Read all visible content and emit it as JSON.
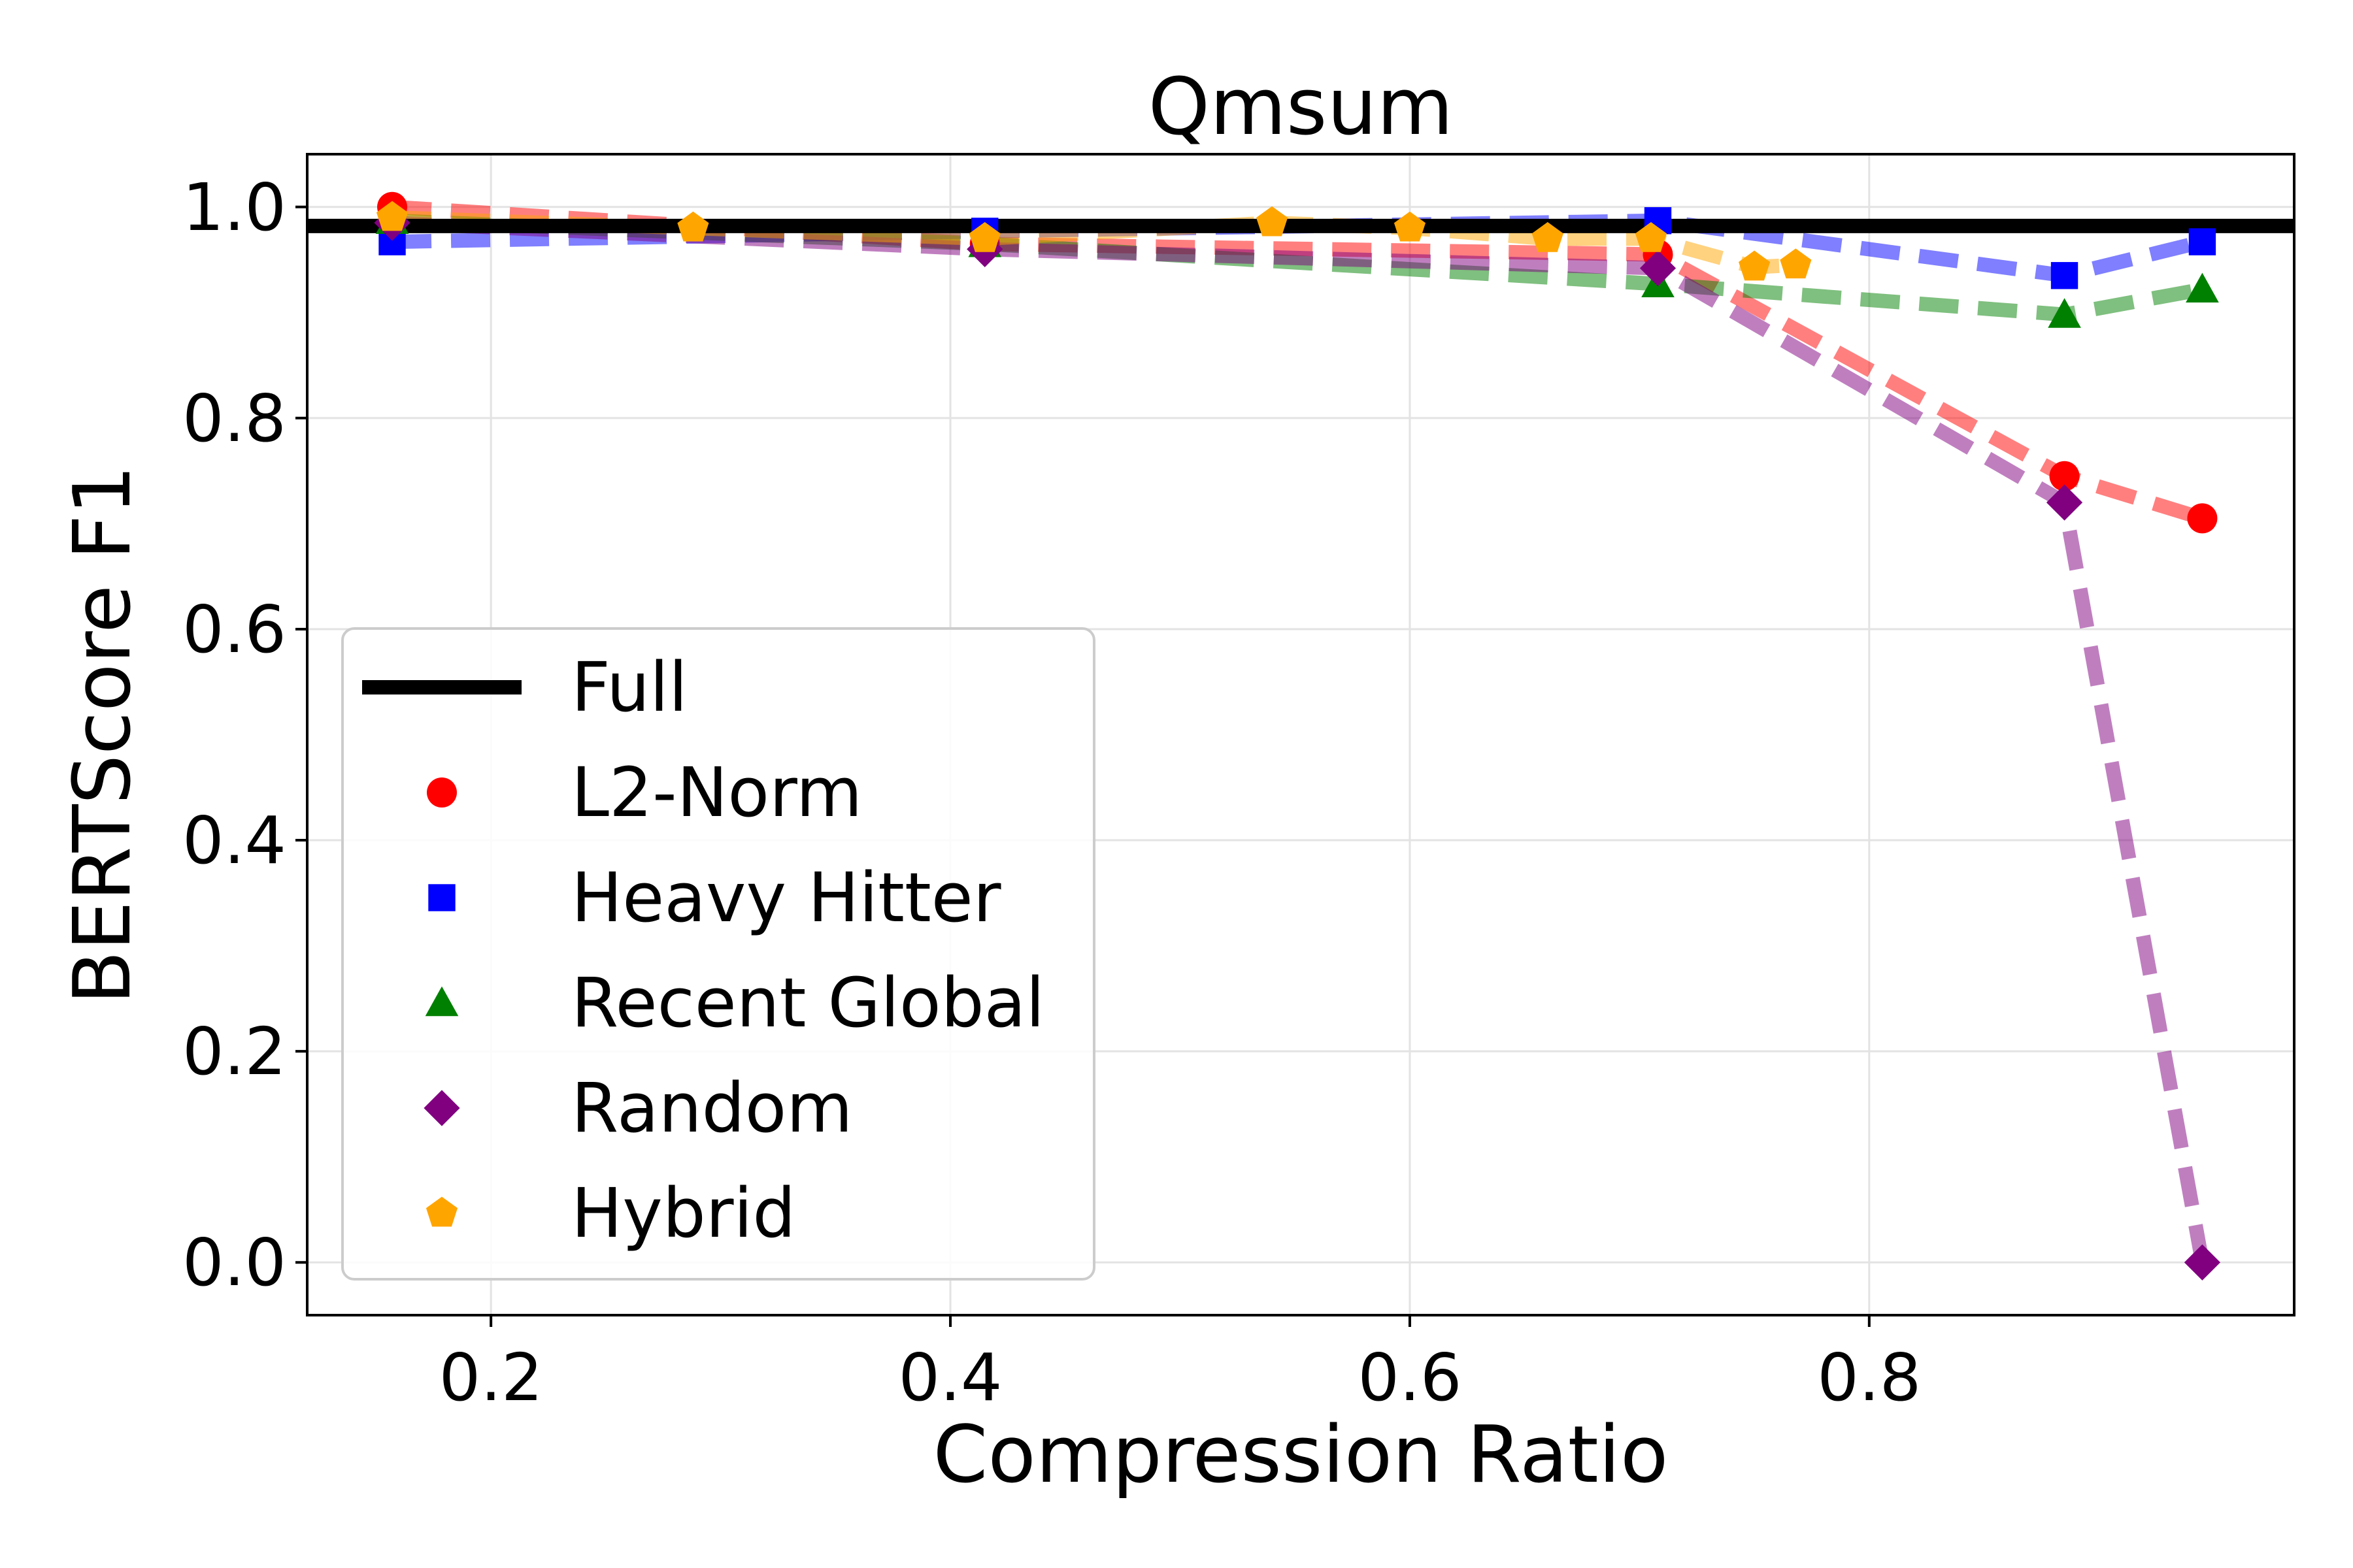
{
  "chart_data": {
    "type": "line",
    "title": "Qmsum",
    "xlabel": "Compression Ratio",
    "ylabel": "BERTScore F1",
    "xlim": [
      0.12,
      0.985
    ],
    "ylim": [
      -0.05,
      1.05
    ],
    "xticks": [
      "0.2",
      "0.4",
      "0.6",
      "0.8"
    ],
    "yticks": [
      "0.0",
      "0.2",
      "0.4",
      "0.6",
      "0.8",
      "1.0"
    ],
    "grid": true,
    "legend_position": "lower-left",
    "baseline": {
      "name": "Full",
      "value": 0.982,
      "color": "#000000"
    },
    "series": [
      {
        "name": "L2-Norm",
        "color": "#ff0000",
        "marker": "circle",
        "x": [
          0.157,
          0.415,
          0.708,
          0.885,
          0.945
        ],
        "y": [
          1.0,
          0.965,
          0.955,
          0.745,
          0.705
        ]
      },
      {
        "name": "Heavy Hitter",
        "color": "#0000ff",
        "marker": "square",
        "x": [
          0.157,
          0.415,
          0.708,
          0.885,
          0.945
        ],
        "y": [
          0.967,
          0.977,
          0.987,
          0.935,
          0.967
        ]
      },
      {
        "name": "Recent Global",
        "color": "#008000",
        "marker": "triangle",
        "x": [
          0.157,
          0.415,
          0.708,
          0.885,
          0.945
        ],
        "y": [
          0.987,
          0.965,
          0.927,
          0.898,
          0.922
        ]
      },
      {
        "name": "Random",
        "color": "#800080",
        "marker": "diamond",
        "x": [
          0.157,
          0.415,
          0.708,
          0.885,
          0.945
        ],
        "y": [
          0.985,
          0.96,
          0.942,
          0.72,
          0.0
        ]
      },
      {
        "name": "Hybrid",
        "color": "#ffa500",
        "marker": "pentagon",
        "x": [
          0.157,
          0.288,
          0.415,
          0.54,
          0.6,
          0.66,
          0.705,
          0.75,
          0.768
        ],
        "y": [
          0.99,
          0.98,
          0.97,
          0.985,
          0.98,
          0.97,
          0.97,
          0.943,
          0.945
        ]
      }
    ]
  }
}
